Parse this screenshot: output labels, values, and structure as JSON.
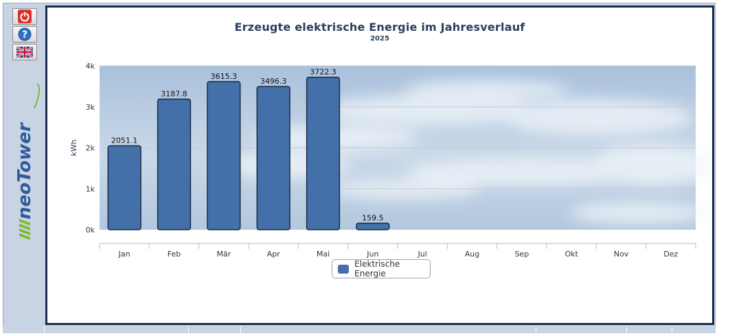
{
  "sidebar": {
    "buttons": [
      {
        "name": "power-button",
        "icon": "power-icon"
      },
      {
        "name": "help-button",
        "icon": "question-icon"
      },
      {
        "name": "language-button",
        "icon": "uk-flag-icon"
      }
    ],
    "logo_text": "neoTower"
  },
  "colors": {
    "bar": "#4370a8",
    "bar_stroke": "#1b2a45",
    "title": "#2c3e5e",
    "sidebar": "#c8d4e4",
    "panel_border": "#1a2a4f",
    "logo_green": "#7dbb2a"
  },
  "chart_data": {
    "type": "bar",
    "title": "Erzeugte elektrische Energie im Jahresverlauf",
    "subtitle": "2025",
    "ylabel": "kWh",
    "xlabel": "",
    "ylim": [
      0,
      4000
    ],
    "yticks": [
      {
        "v": 0,
        "label": "0k"
      },
      {
        "v": 1000,
        "label": "1k"
      },
      {
        "v": 2000,
        "label": "2k"
      },
      {
        "v": 3000,
        "label": "3k"
      },
      {
        "v": 4000,
        "label": "4k"
      }
    ],
    "categories": [
      "Jan",
      "Feb",
      "Mär",
      "Apr",
      "Mai",
      "Jun",
      "Jul",
      "Aug",
      "Sep",
      "Okt",
      "Nov",
      "Dez"
    ],
    "series": [
      {
        "name": "Elektrische Energie",
        "values": [
          2051.1,
          3187.8,
          3615.3,
          3496.3,
          3722.3,
          159.5,
          null,
          null,
          null,
          null,
          null,
          null
        ],
        "labels": [
          "2051.1",
          "3187.8",
          "3615.3",
          "3496.3",
          "3722.3",
          "159.5",
          "",
          "",
          "",
          "",
          "",
          ""
        ]
      }
    ],
    "legend": "bottom-center",
    "grid": true
  }
}
